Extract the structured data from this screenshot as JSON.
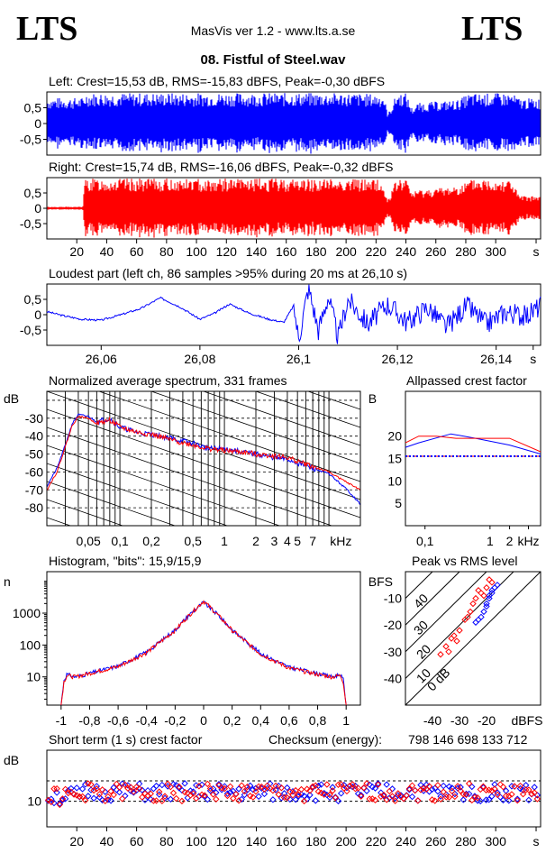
{
  "header": {
    "logo_left": "LTS",
    "logo_right": "LTS",
    "app_title": "MasVis ver 1.2 - www.lts.a.se",
    "track_title": "08. Fistful of Steel.wav"
  },
  "colors": {
    "left": "#0000ff",
    "right": "#ff0000"
  },
  "chart_data": [
    {
      "id": "left",
      "type": "area",
      "title": "Left: Crest=15,53 dB, RMS=-15,83 dBFS, Peak=-0,30 dBFS",
      "ylim": [
        -1,
        1
      ],
      "yticks": [
        "0,5",
        "0",
        "-0,5"
      ],
      "xlim": [
        0,
        330
      ],
      "series": [
        {
          "color": "#0000ff",
          "envelope": [
            [
              0,
              0.82
            ],
            [
              25,
              0.82
            ],
            [
              25.5,
              0.97
            ],
            [
              200,
              0.97
            ],
            [
              225,
              0.93
            ],
            [
              228,
              0.3
            ],
            [
              234,
              0.97
            ],
            [
              240,
              0.97
            ],
            [
              244,
              0.5
            ],
            [
              248,
              0.65
            ],
            [
              260,
              0.7
            ],
            [
              275,
              0.75
            ],
            [
              282,
              0.95
            ],
            [
              310,
              0.97
            ],
            [
              316,
              0.8
            ],
            [
              330,
              0.8
            ]
          ]
        }
      ]
    },
    {
      "id": "right",
      "type": "area",
      "title": "Right: Crest=15,74 dB, RMS=-16,06 dBFS, Peak=-0,32 dBFS",
      "ylim": [
        -1,
        1
      ],
      "yticks": [
        "0,5",
        "0",
        "-0,5"
      ],
      "xlim": [
        0,
        330
      ],
      "xticks": [
        "20",
        "40",
        "60",
        "80",
        "100",
        "120",
        "140",
        "160",
        "180",
        "200",
        "220",
        "240",
        "260",
        "280",
        "300",
        "s"
      ],
      "series": [
        {
          "color": "#ff0000",
          "envelope": [
            [
              0,
              0.05
            ],
            [
              24,
              0.05
            ],
            [
              25.5,
              0.97
            ],
            [
              222,
              0.97
            ],
            [
              228,
              0.3
            ],
            [
              234,
              0.97
            ],
            [
              240,
              0.97
            ],
            [
              244,
              0.55
            ],
            [
              250,
              0.62
            ],
            [
              265,
              0.68
            ],
            [
              278,
              0.8
            ],
            [
              285,
              0.97
            ],
            [
              310,
              0.97
            ],
            [
              316,
              0.4
            ],
            [
              330,
              0.4
            ]
          ]
        }
      ]
    },
    {
      "id": "loudest",
      "type": "line",
      "title": "Loudest part (left  ch, 86 samples >95% during 20 ms at 26,10 s)",
      "ylim": [
        -1,
        1
      ],
      "xlim": [
        26.049,
        26.149
      ],
      "yticks": [
        "0,5",
        "0",
        "-0,5"
      ],
      "xticks": [
        "26,06",
        "26,08",
        "26,1",
        "26,12",
        "26,14",
        "s"
      ],
      "series": [
        {
          "color": "#0000ff",
          "points": [
            [
              26.049,
              0.1
            ],
            [
              26.052,
              -0.02
            ],
            [
              26.056,
              -0.15
            ],
            [
              26.06,
              -0.18
            ],
            [
              26.064,
              0.0
            ],
            [
              26.068,
              0.2
            ],
            [
              26.072,
              0.55
            ],
            [
              26.076,
              0.25
            ],
            [
              26.08,
              -0.15
            ],
            [
              26.083,
              0.05
            ],
            [
              26.086,
              0.35
            ],
            [
              26.09,
              0.05
            ],
            [
              26.094,
              -0.15
            ],
            [
              26.097,
              -0.25
            ],
            [
              26.099,
              0.3
            ],
            [
              26.1,
              -0.8
            ],
            [
              26.102,
              0.9
            ],
            [
              26.104,
              -0.5
            ],
            [
              26.106,
              0.6
            ],
            [
              26.108,
              -0.75
            ],
            [
              26.11,
              0.5
            ],
            [
              26.114,
              -0.3
            ],
            [
              26.118,
              0.35
            ],
            [
              26.122,
              -0.25
            ],
            [
              26.126,
              0.25
            ],
            [
              26.13,
              -0.4
            ],
            [
              26.134,
              0.3
            ],
            [
              26.138,
              -0.3
            ],
            [
              26.142,
              0.1
            ],
            [
              26.146,
              -0.05
            ],
            [
              26.149,
              0.3
            ]
          ]
        }
      ]
    },
    {
      "id": "spectrum",
      "type": "line",
      "title": "Normalized average spectrum, 331 frames",
      "ylabel": "dB",
      "xlabel": "kHz",
      "ylim": [
        -90,
        -15
      ],
      "xlim": [
        0.02,
        20
      ],
      "xscale": "log",
      "yticks": [
        "-30",
        "-40",
        "-50",
        "-60",
        "-70",
        "-80"
      ],
      "xticks": [
        "0,05",
        "0,1",
        "0,2",
        "0,5",
        "1",
        "2",
        "3",
        "4",
        "5",
        "7",
        "kHz"
      ],
      "series": [
        {
          "name": "left",
          "color": "#0000ff",
          "points": [
            [
              0.02,
              -68
            ],
            [
              0.025,
              -58
            ],
            [
              0.03,
              -45
            ],
            [
              0.035,
              -33
            ],
            [
              0.04,
              -28
            ],
            [
              0.05,
              -29
            ],
            [
              0.06,
              -32
            ],
            [
              0.08,
              -30
            ],
            [
              0.1,
              -35
            ],
            [
              0.15,
              -38
            ],
            [
              0.2,
              -39
            ],
            [
              0.3,
              -41
            ],
            [
              0.5,
              -44
            ],
            [
              0.7,
              -47
            ],
            [
              1,
              -47
            ],
            [
              1.5,
              -49
            ],
            [
              2,
              -50
            ],
            [
              3,
              -52
            ],
            [
              4,
              -53
            ],
            [
              5,
              -55
            ],
            [
              7,
              -58
            ],
            [
              10,
              -61
            ],
            [
              15,
              -70
            ],
            [
              20,
              -78
            ]
          ]
        },
        {
          "name": "right",
          "color": "#ff0000",
          "points": [
            [
              0.02,
              -70
            ],
            [
              0.025,
              -60
            ],
            [
              0.03,
              -46
            ],
            [
              0.035,
              -34
            ],
            [
              0.04,
              -29
            ],
            [
              0.05,
              -30
            ],
            [
              0.06,
              -33
            ],
            [
              0.08,
              -31
            ],
            [
              0.1,
              -35
            ],
            [
              0.15,
              -38
            ],
            [
              0.2,
              -39
            ],
            [
              0.3,
              -42
            ],
            [
              0.5,
              -45
            ],
            [
              0.7,
              -47
            ],
            [
              1,
              -48
            ],
            [
              1.5,
              -49
            ],
            [
              2,
              -50
            ],
            [
              3,
              -51
            ],
            [
              4,
              -52
            ],
            [
              5,
              -54
            ],
            [
              7,
              -57
            ],
            [
              10,
              -60
            ],
            [
              15,
              -66
            ],
            [
              20,
              -70
            ]
          ]
        }
      ]
    },
    {
      "id": "allpass",
      "type": "line",
      "title": "Allpassed crest factor",
      "ylabel": "dB",
      "xlabel": "kHz",
      "ylim": [
        0,
        30
      ],
      "xlim": [
        0.05,
        6
      ],
      "xscale": "log",
      "yticks": [
        "20",
        "15",
        "10",
        "5"
      ],
      "xticks": [
        "0,1",
        "1",
        "2",
        "kHz"
      ],
      "reference_line": 15.5,
      "series": [
        {
          "name": "left",
          "color": "#0000ff",
          "points": [
            [
              0.05,
              17.5
            ],
            [
              0.08,
              18.5
            ],
            [
              0.25,
              20.5
            ],
            [
              0.6,
              19.5
            ],
            [
              2,
              18
            ],
            [
              6,
              16
            ]
          ]
        },
        {
          "name": "right",
          "color": "#ff0000",
          "points": [
            [
              0.05,
              18.5
            ],
            [
              0.08,
              20
            ],
            [
              0.15,
              20
            ],
            [
              0.3,
              19.5
            ],
            [
              1,
              19.5
            ],
            [
              2,
              19.5
            ],
            [
              6,
              16.5
            ]
          ]
        }
      ]
    },
    {
      "id": "histogram",
      "type": "line",
      "title": "Histogram, \"bits\": 15,9/15,9",
      "ylabel": "n",
      "yscale": "log",
      "ylim": [
        1.3,
        20000
      ],
      "xlim": [
        -1.1,
        1.1
      ],
      "yticks": [
        "1000",
        "100",
        "10"
      ],
      "xticks": [
        "-1",
        "-0,8",
        "-0,6",
        "-0,4",
        "-0,2",
        "0",
        "0,2",
        "0,4",
        "0,6",
        "0,8",
        "1"
      ],
      "series": [
        {
          "name": "left",
          "color": "#0000ff",
          "points": [
            [
              -1.0,
              1.3
            ],
            [
              -0.98,
              8
            ],
            [
              -0.96,
              12
            ],
            [
              -0.9,
              10
            ],
            [
              -0.8,
              13
            ],
            [
              -0.6,
              22
            ],
            [
              -0.4,
              60
            ],
            [
              -0.2,
              300
            ],
            [
              -0.1,
              900
            ],
            [
              0,
              2200
            ],
            [
              0.1,
              900
            ],
            [
              0.2,
              300
            ],
            [
              0.4,
              55
            ],
            [
              0.6,
              20
            ],
            [
              0.8,
              13
            ],
            [
              0.9,
              10
            ],
            [
              0.96,
              12
            ],
            [
              0.98,
              8
            ],
            [
              1.0,
              1.3
            ]
          ]
        },
        {
          "name": "right",
          "color": "#ff0000",
          "points": [
            [
              -1.0,
              1.3
            ],
            [
              -0.98,
              7
            ],
            [
              -0.96,
              11
            ],
            [
              -0.9,
              10
            ],
            [
              -0.8,
              13
            ],
            [
              -0.6,
              21
            ],
            [
              -0.4,
              58
            ],
            [
              -0.2,
              290
            ],
            [
              -0.1,
              880
            ],
            [
              0,
              2400
            ],
            [
              0.1,
              880
            ],
            [
              0.2,
              290
            ],
            [
              0.4,
              52
            ],
            [
              0.6,
              19
            ],
            [
              0.8,
              12
            ],
            [
              0.9,
              10
            ],
            [
              0.96,
              11
            ],
            [
              0.98,
              7
            ],
            [
              1.0,
              1.3
            ]
          ]
        }
      ]
    },
    {
      "id": "peak_rms",
      "type": "scatter",
      "title": "Peak vs RMS level",
      "ylabel": "dBFS",
      "xlabel": "dBFS",
      "xlim": [
        -50,
        0
      ],
      "ylim": [
        -50,
        0
      ],
      "yticks": [
        "-10",
        "-20",
        "-30",
        "-40"
      ],
      "xticks": [
        "-40",
        "-30",
        "-20",
        "dBFS"
      ],
      "diagonal_labels": [
        "40",
        "30",
        "20",
        "10",
        "0 dB"
      ],
      "series": [
        {
          "name": "left",
          "color": "#0000ff",
          "points": [
            [
              -20,
              -13
            ],
            [
              -19,
              -10
            ],
            [
              -18,
              -8
            ],
            [
              -21,
              -15
            ],
            [
              -22,
              -17
            ],
            [
              -17,
              -6
            ],
            [
              -16,
              -5
            ],
            [
              -23,
              -18
            ],
            [
              -20,
              -12
            ],
            [
              -19,
              -9
            ],
            [
              -18,
              -7
            ],
            [
              -24,
              -19
            ]
          ]
        },
        {
          "name": "right",
          "color": "#ff0000",
          "points": [
            [
              -35,
              -28
            ],
            [
              -33,
              -25
            ],
            [
              -32,
              -24
            ],
            [
              -34,
              -30
            ],
            [
              -30,
              -22
            ],
            [
              -28,
              -18
            ],
            [
              -24,
              -10
            ],
            [
              -22,
              -8
            ],
            [
              -20,
              -6
            ],
            [
              -18,
              -4
            ],
            [
              -21,
              -9
            ],
            [
              -25,
              -12
            ],
            [
              -37,
              -31
            ],
            [
              -31,
              -26
            ],
            [
              -27,
              -17
            ],
            [
              -23,
              -7
            ],
            [
              -19,
              -3
            ],
            [
              -26,
              -15
            ]
          ]
        }
      ]
    },
    {
      "id": "short_term",
      "type": "scatter",
      "title": "Short term (1 s) crest factor",
      "ylabel": "dB",
      "xlim": [
        0,
        330
      ],
      "ylim": [
        0,
        30
      ],
      "yticks": [
        "10"
      ],
      "xticks": [
        "20",
        "40",
        "60",
        "80",
        "100",
        "120",
        "140",
        "160",
        "180",
        "200",
        "220",
        "240",
        "260",
        "280",
        "300",
        "s"
      ],
      "reference_lines": [
        10,
        18
      ],
      "series": [
        {
          "name": "left",
          "color": "#0000ff"
        },
        {
          "name": "right",
          "color": "#ff0000"
        }
      ]
    }
  ],
  "checksum": {
    "label": "Checksum (energy):",
    "value": "798 146 698 133 712"
  }
}
